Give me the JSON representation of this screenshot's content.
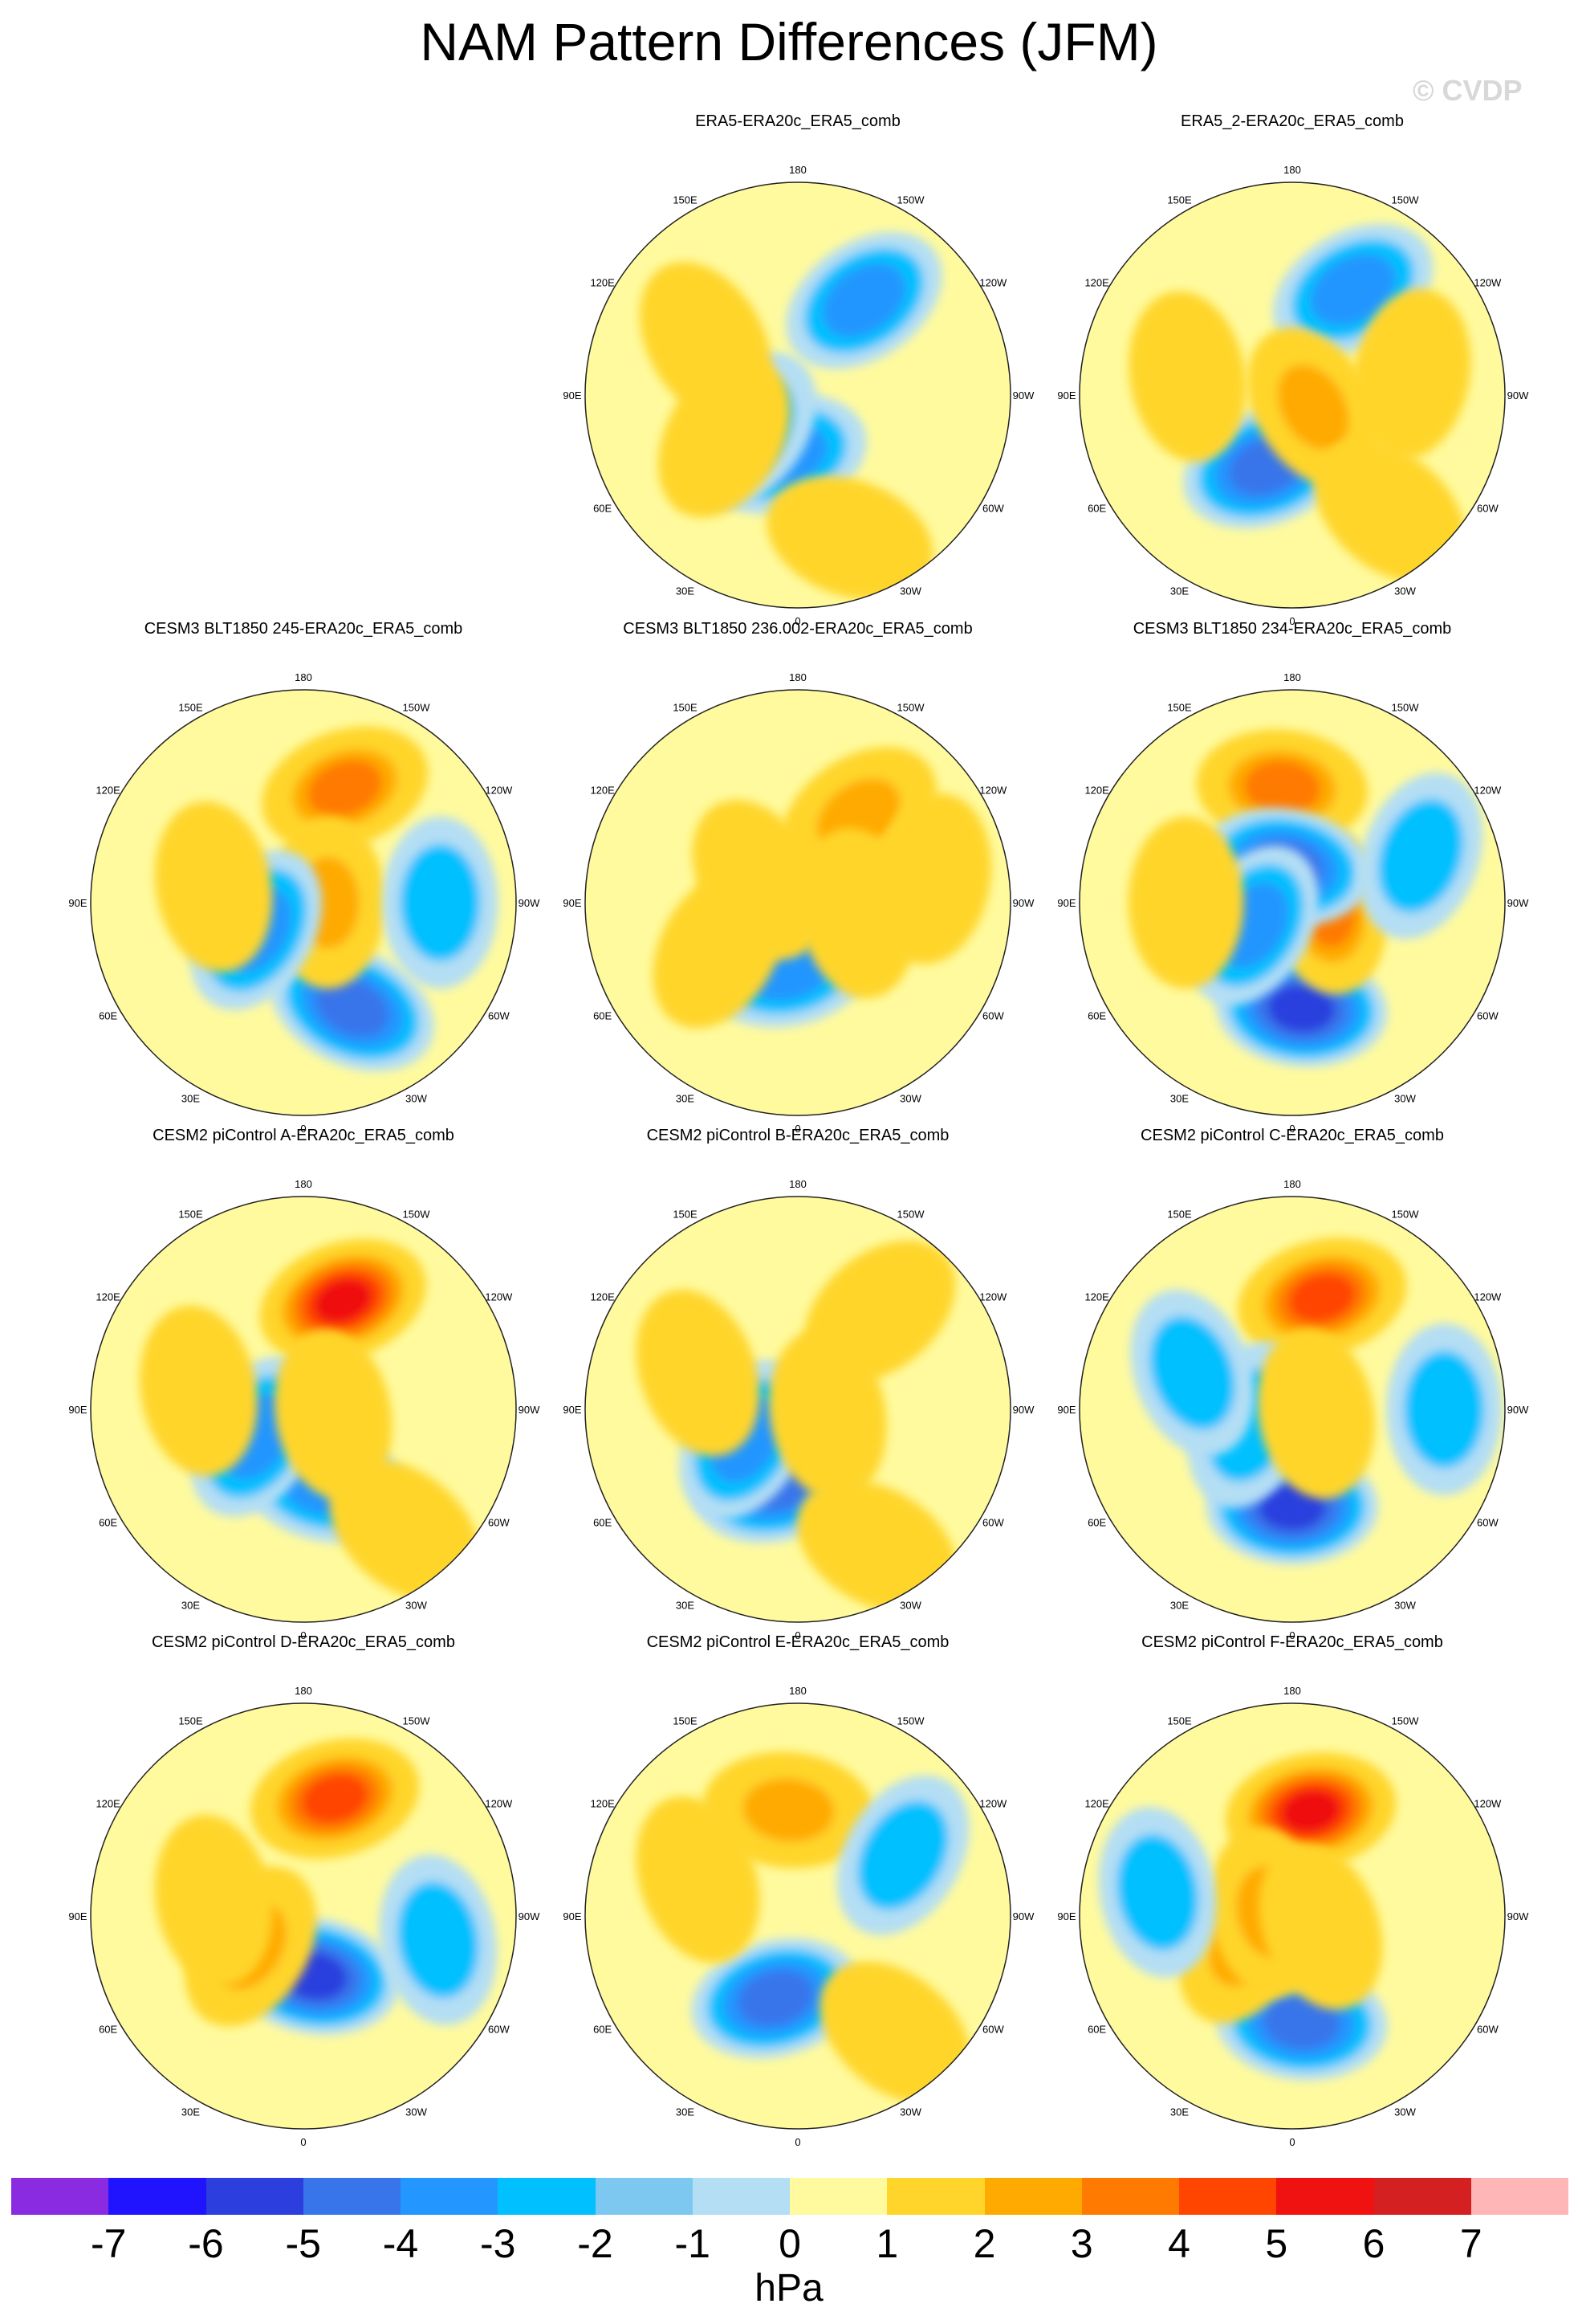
{
  "title": "NAM Pattern Differences (JFM)",
  "watermark": "© CVDP",
  "lon_labels": [
    "180",
    "150E",
    "120E",
    "90E",
    "60E",
    "30E",
    "0",
    "30W",
    "60W",
    "90W",
    "120W",
    "150W"
  ],
  "panels": [
    {
      "title": "ERA5-ERA20c_ERA5_comb",
      "features": [
        {
          "lon": -145,
          "lat": 52,
          "v": -2
        },
        {
          "lon": 15,
          "lat": 70,
          "v": -2
        },
        {
          "lon": 55,
          "lat": 70,
          "v": -1.5
        },
        {
          "lon": 60,
          "lat": 62,
          "v": 1.5
        },
        {
          "lon": 120,
          "lat": 55,
          "v": 1.5
        },
        {
          "lon": -20,
          "lat": 40,
          "v": 1.5
        }
      ]
    },
    {
      "title": "ERA5_2-ERA20c_ERA5_comb",
      "features": [
        {
          "lon": -150,
          "lat": 50,
          "v": -2
        },
        {
          "lon": 20,
          "lat": 65,
          "v": -3
        },
        {
          "lon": -60,
          "lat": 82,
          "v": 2
        },
        {
          "lon": -100,
          "lat": 50,
          "v": 1.5
        },
        {
          "lon": 100,
          "lat": 55,
          "v": 1.5
        },
        {
          "lon": -40,
          "lat": 40,
          "v": 1.5
        }
      ]
    },
    {
      "title": "CESM3 BLT1850 245-ERA20c_ERA5_comb",
      "features": [
        {
          "lon": -160,
          "lat": 50,
          "v": 3
        },
        {
          "lon": -25,
          "lat": 52,
          "v": -3.5
        },
        {
          "lon": -90,
          "lat": 82,
          "v": 2
        },
        {
          "lon": 60,
          "lat": 72,
          "v": -2
        },
        {
          "lon": 100,
          "lat": 60,
          "v": 1
        },
        {
          "lon": -90,
          "lat": 45,
          "v": -1.2
        }
      ]
    },
    {
      "title": "CESM3 BLT1850 236.002-ERA20c_ERA5_comb",
      "features": [
        {
          "lon": -145,
          "lat": 55,
          "v": 2
        },
        {
          "lon": 10,
          "lat": 68,
          "v": -2.5
        },
        {
          "lon": -80,
          "lat": 70,
          "v": 1.5
        },
        {
          "lon": 60,
          "lat": 60,
          "v": 1.5
        },
        {
          "lon": -100,
          "lat": 45,
          "v": 1.5
        },
        {
          "lon": 120,
          "lat": 75,
          "v": 1
        }
      ]
    },
    {
      "title": "CESM3 BLT1850 234-ERA20c_ERA5_comb",
      "features": [
        {
          "lon": 175,
          "lat": 52,
          "v": 3
        },
        {
          "lon": -5,
          "lat": 55,
          "v": -4
        },
        {
          "lon": -80,
          "lat": 78,
          "v": 3
        },
        {
          "lon": 170,
          "lat": 78,
          "v": -3
        },
        {
          "lon": 60,
          "lat": 75,
          "v": -2.5
        },
        {
          "lon": -110,
          "lat": 45,
          "v": -1.2
        },
        {
          "lon": 90,
          "lat": 55,
          "v": 1.2
        }
      ]
    },
    {
      "title": "CESM2 piControl A-ERA20c_ERA5_comb",
      "features": [
        {
          "lon": -160,
          "lat": 52,
          "v": 5
        },
        {
          "lon": -15,
          "lat": 65,
          "v": -2
        },
        {
          "lon": 60,
          "lat": 72,
          "v": -2.5
        },
        {
          "lon": -80,
          "lat": 80,
          "v": 1.5
        },
        {
          "lon": -40,
          "lat": 38,
          "v": 1.5
        },
        {
          "lon": 100,
          "lat": 55,
          "v": 1
        }
      ]
    },
    {
      "title": "CESM2 piControl B-ERA20c_ERA5_comb",
      "features": [
        {
          "lon": 15,
          "lat": 65,
          "v": -3
        },
        {
          "lon": -140,
          "lat": 48,
          "v": 1.5
        },
        {
          "lon": 60,
          "lat": 70,
          "v": -2
        },
        {
          "lon": -80,
          "lat": 80,
          "v": 1.5
        },
        {
          "lon": 110,
          "lat": 55,
          "v": 1.5
        },
        {
          "lon": -30,
          "lat": 38,
          "v": 1.5
        }
      ]
    },
    {
      "title": "CESM2 piControl C-ERA20c_ERA5_comb",
      "features": [
        {
          "lon": -165,
          "lat": 52,
          "v": 4
        },
        {
          "lon": 0,
          "lat": 58,
          "v": -4
        },
        {
          "lon": 70,
          "lat": 75,
          "v": -1.5
        },
        {
          "lon": -80,
          "lat": 82,
          "v": 1.5
        },
        {
          "lon": -90,
          "lat": 40,
          "v": -1
        },
        {
          "lon": 110,
          "lat": 55,
          "v": -1
        }
      ]
    },
    {
      "title": "CESM2 piControl D-ERA20c_ERA5_comb",
      "features": [
        {
          "lon": -165,
          "lat": 50,
          "v": 4
        },
        {
          "lon": -10,
          "lat": 70,
          "v": -4.5
        },
        {
          "lon": 60,
          "lat": 70,
          "v": 2
        },
        {
          "lon": -80,
          "lat": 45,
          "v": -1.2
        },
        {
          "lon": 100,
          "lat": 60,
          "v": 1.2
        }
      ]
    },
    {
      "title": "CESM2 piControl E-ERA20c_ERA5_comb",
      "features": [
        {
          "lon": 175,
          "lat": 55,
          "v": 2
        },
        {
          "lon": 15,
          "lat": 62,
          "v": -3.5
        },
        {
          "lon": -120,
          "lat": 50,
          "v": -1.2
        },
        {
          "lon": 110,
          "lat": 55,
          "v": 1.5
        },
        {
          "lon": -40,
          "lat": 40,
          "v": 1.5
        }
      ]
    },
    {
      "title": "CESM2 piControl F-ERA20c_ERA5_comb",
      "features": [
        {
          "lon": -170,
          "lat": 55,
          "v": 5
        },
        {
          "lon": -5,
          "lat": 55,
          "v": -3.5
        },
        {
          "lon": 60,
          "lat": 72,
          "v": 2.5
        },
        {
          "lon": 100,
          "lat": 82,
          "v": 2
        },
        {
          "lon": -70,
          "lat": 80,
          "v": 1.5
        },
        {
          "lon": 100,
          "lat": 45,
          "v": -1
        }
      ]
    }
  ],
  "colorbar": {
    "colors": [
      "#8a2be2",
      "#2014ff",
      "#2c3fde",
      "#3875eb",
      "#2396ff",
      "#00c0ff",
      "#7cc8f0",
      "#b4def4",
      "#fffa9e",
      "#ffd52c",
      "#ffaa00",
      "#ff7a00",
      "#ff4500",
      "#f01111",
      "#d42020",
      "#ffb6b6"
    ],
    "ticks": [
      "-7",
      "-6",
      "-5",
      "-4",
      "-3",
      "-2",
      "-1",
      "0",
      "1",
      "2",
      "3",
      "4",
      "5",
      "6",
      "7"
    ],
    "units": "hPa"
  }
}
